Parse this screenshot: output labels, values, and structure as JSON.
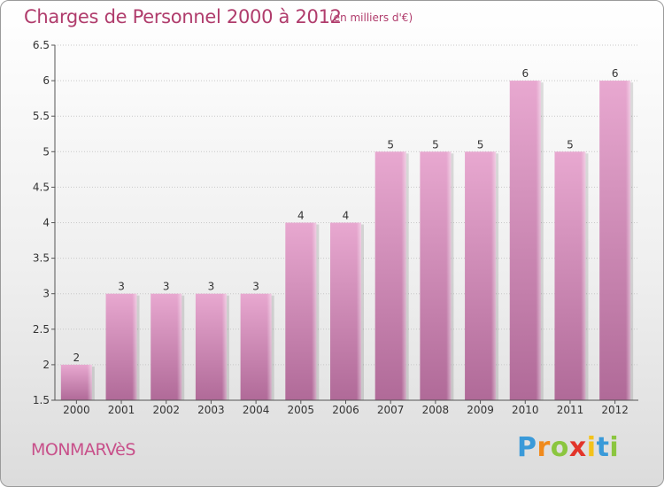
{
  "header": {
    "title": "Charges de Personnel 2000 à 2012",
    "subtitle": "(en milliers d'€)"
  },
  "footer": {
    "commune": "MONMARVèS",
    "logo_letters": [
      "P",
      "r",
      "o",
      "x",
      "i",
      "t",
      "i"
    ],
    "logo_colors": [
      "#3a9ad9",
      "#f08a1c",
      "#8bc63f",
      "#e2342a",
      "#f3c21b",
      "#3a9ad9",
      "#8bc63f"
    ]
  },
  "colors": {
    "bar_top": "#e8a8d0",
    "bar_bottom": "#b06a98",
    "grid": "#c8c8c8",
    "axis": "#555555",
    "title": "#b03c6c"
  },
  "chart_data": {
    "type": "bar",
    "title": "Charges de Personnel 2000 à 2012",
    "subtitle": "(en milliers d'€)",
    "categories": [
      "2000",
      "2001",
      "2002",
      "2003",
      "2004",
      "2005",
      "2006",
      "2007",
      "2008",
      "2009",
      "2010",
      "2011",
      "2012"
    ],
    "values": [
      2,
      3,
      3,
      3,
      3,
      4,
      4,
      5,
      5,
      5,
      6,
      5,
      6
    ],
    "data_labels": [
      "2",
      "3",
      "3",
      "3",
      "3",
      "4",
      "4",
      "5",
      "5",
      "5",
      "6",
      "5",
      "6"
    ],
    "ylim": [
      1.5,
      6.5
    ],
    "yticks": [
      1.5,
      2,
      2.5,
      3,
      3.5,
      4,
      4.5,
      5,
      5.5,
      6,
      6.5
    ],
    "ytick_labels": [
      "1.5",
      "2",
      "2.5",
      "3",
      "3.5",
      "4",
      "4.5",
      "5",
      "5.5",
      "6",
      "6.5"
    ],
    "grid": true,
    "xlabel": "",
    "ylabel": ""
  }
}
